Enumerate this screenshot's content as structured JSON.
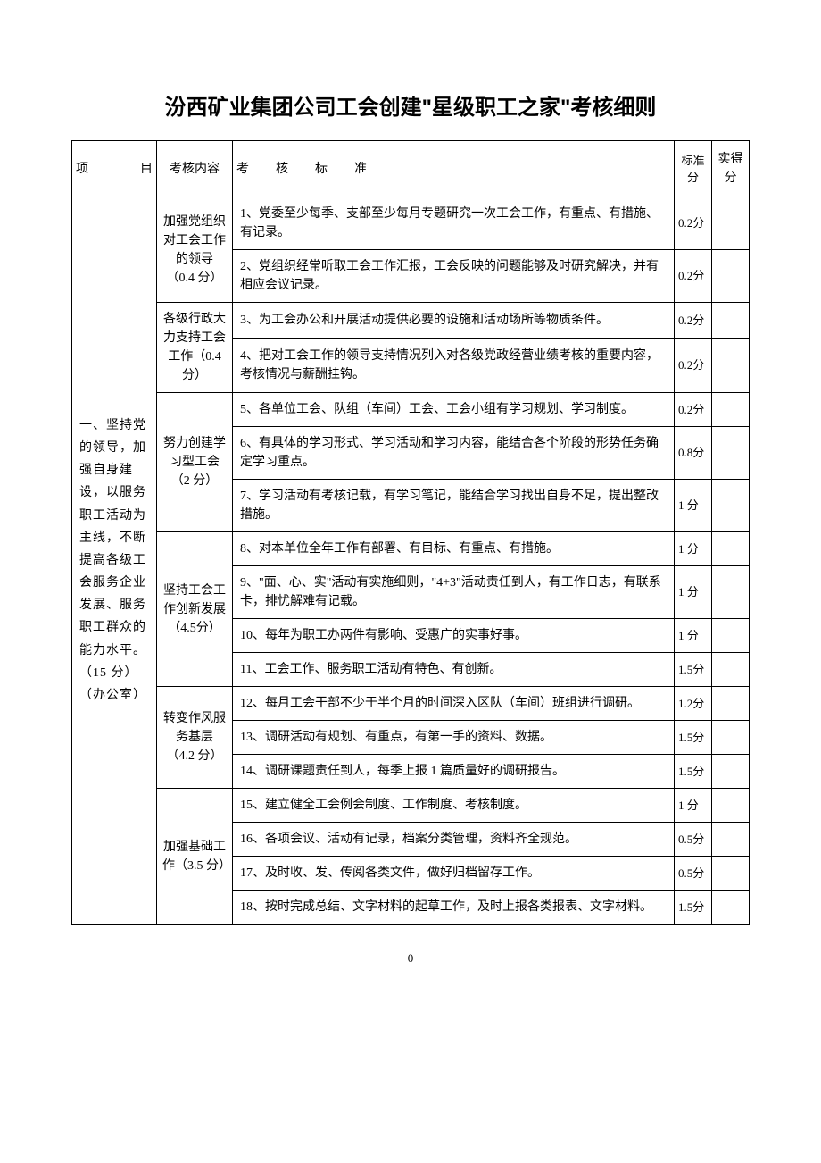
{
  "title": "汾西矿业集团公司工会创建\"星级职工之家\"考核细则",
  "headers": {
    "project": "项　目",
    "content": "考核内容",
    "standard": "考　核　标　准",
    "score": "标准分",
    "actual": "实得分"
  },
  "project_section": "一、坚持党的领导，加强自身建设，以服务职工活动为主线，不断提高各级工会服务企业发展、服务职工群众的能力水平。（15 分）（办公室）",
  "content_groups": [
    {
      "label": "加强党组织对工会工作的领导（0.4 分）",
      "rows": [
        {
          "standard": "1、党委至少每季、支部至少每月专题研究一次工会工作，有重点、有措施、有记录。",
          "score": "0.2分"
        },
        {
          "standard": "2、党组织经常听取工会工作汇报，工会反映的问题能够及时研究解决，并有相应会议记录。",
          "score": "0.2分"
        }
      ]
    },
    {
      "label": "各级行政大力支持工会工作（0.4 分）",
      "rows": [
        {
          "standard": "3、为工会办公和开展活动提供必要的设施和活动场所等物质条件。",
          "score": "0.2分"
        },
        {
          "standard": "4、把对工会工作的领导支持情况列入对各级党政经营业绩考核的重要内容，考核情况与薪酬挂钩。",
          "score": "0.2分"
        }
      ]
    },
    {
      "label": "努力创建学习型工会（2 分）",
      "rows": [
        {
          "standard": "5、各单位工会、队组（车间）工会、工会小组有学习规划、学习制度。",
          "score": "0.2分"
        },
        {
          "standard": "6、有具体的学习形式、学习活动和学习内容，能结合各个阶段的形势任务确定学习重点。",
          "score": "0.8分"
        },
        {
          "standard": "7、学习活动有考核记载，有学习笔记，能结合学习找出自身不足，提出整改措施。",
          "score": "1 分"
        }
      ]
    },
    {
      "label": "坚持工会工作创新发展（4.5分）",
      "rows": [
        {
          "standard": "8、对本单位全年工作有部署、有目标、有重点、有措施。",
          "score": "1 分"
        },
        {
          "standard": "9、\"面、心、实\"活动有实施细则，\"4+3\"活动责任到人，有工作日志，有联系卡，排忧解难有记载。",
          "score": "1 分"
        },
        {
          "standard": "10、每年为职工办两件有影响、受惠广的实事好事。",
          "score": "1 分"
        },
        {
          "standard": "11、工会工作、服务职工活动有特色、有创新。",
          "score": "1.5分"
        }
      ]
    },
    {
      "label": "转变作风服务基层（4.2 分）",
      "rows": [
        {
          "standard": "12、每月工会干部不少于半个月的时间深入区队（车间）班组进行调研。",
          "score": "1.2分"
        },
        {
          "standard": "13、调研活动有规划、有重点，有第一手的资料、数据。",
          "score": "1.5分"
        },
        {
          "standard": "14、调研课题责任到人，每季上报 1 篇质量好的调研报告。",
          "score": "1.5分"
        }
      ]
    },
    {
      "label": "加强基础工作（3.5 分）",
      "rows": [
        {
          "standard": "15、建立健全工会例会制度、工作制度、考核制度。",
          "score": "1 分"
        },
        {
          "standard": "16、各项会议、活动有记录，档案分类管理，资料齐全规范。",
          "score": "0.5分"
        },
        {
          "standard": "17、及时收、发、传阅各类文件，做好归档留存工作。",
          "score": "0.5分"
        },
        {
          "standard": "18、按时完成总结、文字材料的起草工作，及时上报各类报表、文字材料。",
          "score": "1.5分"
        }
      ]
    }
  ],
  "page_number": "0"
}
